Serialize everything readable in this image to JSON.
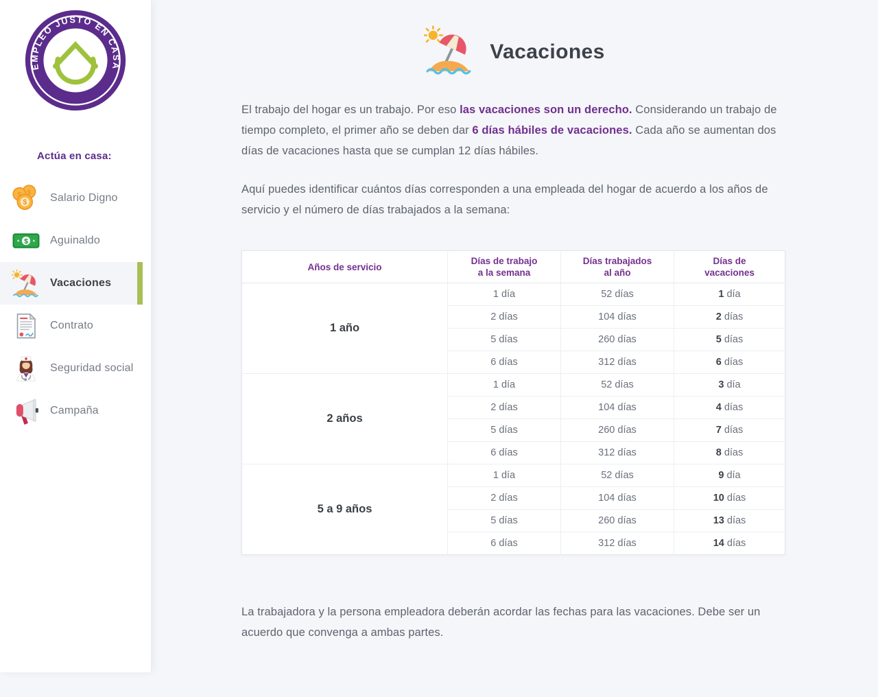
{
  "colors": {
    "page-bg": "#f5f6f9",
    "brand-purple": "#5b2c8c",
    "link-purple": "#70308f",
    "header-purple": "#73318f",
    "accent-green": "#a9bf55"
  },
  "sidebar": {
    "logo_text": "EMPLEO JUSTO EN CASA",
    "heading": "Actúa en casa:",
    "items": [
      {
        "label": "Salario Digno",
        "icon": "coins-icon",
        "active": false
      },
      {
        "label": "Aguinaldo",
        "icon": "banknote-icon",
        "active": false
      },
      {
        "label": "Vacaciones",
        "icon": "beach-umbrella-icon",
        "active": true
      },
      {
        "label": "Contrato",
        "icon": "contract-icon",
        "active": false
      },
      {
        "label": "Seguridad social",
        "icon": "nurse-icon",
        "active": false
      },
      {
        "label": "Campaña",
        "icon": "megaphone-icon",
        "active": false
      }
    ]
  },
  "main": {
    "title": "Vacaciones",
    "paragraph1": {
      "segments": [
        {
          "text": "El trabajo del hogar es un trabajo. Por eso ",
          "style": "normal"
        },
        {
          "text": "las vacaciones son un derecho.",
          "style": "bold-purple"
        },
        {
          "text": " Considerando un trabajo de tiempo completo, el primer año se deben dar ",
          "style": "normal"
        },
        {
          "text": "6 días hábiles de vacaciones.",
          "style": "bold-purple"
        },
        {
          "text": " Cada año se aumentan dos días de vacaciones hasta que se cumplan 12 días hábiles.",
          "style": "normal"
        }
      ]
    },
    "paragraph2": "Aquí puedes identificar cuántos días corresponden a una empleada del hogar de acuerdo a los años de servicio y el número de días trabajados a la semana:",
    "paragraph3": "La trabajadora y la persona empleadora deberán acordar las fechas para las vacaciones. Debe ser un acuerdo que convenga a ambas partes."
  },
  "table": {
    "headers": [
      {
        "lines": [
          "Años de servicio",
          ""
        ]
      },
      {
        "lines": [
          "Días de trabajo",
          "a la semana"
        ]
      },
      {
        "lines": [
          "Días trabajados",
          "al año"
        ]
      },
      {
        "lines": [
          "Días de",
          "vacaciones"
        ]
      }
    ],
    "groups": [
      {
        "service": "1 año",
        "rows": [
          {
            "week": "1 día",
            "year": "52 días",
            "vac_num": "1",
            "vac_unit": "día"
          },
          {
            "week": "2 días",
            "year": "104 días",
            "vac_num": "2",
            "vac_unit": "días"
          },
          {
            "week": "5 días",
            "year": "260 días",
            "vac_num": "5",
            "vac_unit": "días"
          },
          {
            "week": "6 días",
            "year": "312 días",
            "vac_num": "6",
            "vac_unit": "días"
          }
        ]
      },
      {
        "service": "2 años",
        "rows": [
          {
            "week": "1 día",
            "year": "52 días",
            "vac_num": "3",
            "vac_unit": "día"
          },
          {
            "week": "2 días",
            "year": "104 días",
            "vac_num": "4",
            "vac_unit": "días"
          },
          {
            "week": "5 días",
            "year": "260 días",
            "vac_num": "7",
            "vac_unit": "días"
          },
          {
            "week": "6 días",
            "year": "312 días",
            "vac_num": "8",
            "vac_unit": "días"
          }
        ]
      },
      {
        "service": "5 a 9 años",
        "rows": [
          {
            "week": "1 día",
            "year": "52 días",
            "vac_num": "9",
            "vac_unit": "día"
          },
          {
            "week": "2 días",
            "year": "104 días",
            "vac_num": "10",
            "vac_unit": "días"
          },
          {
            "week": "5 días",
            "year": "260 días",
            "vac_num": "13",
            "vac_unit": "días"
          },
          {
            "week": "6 días",
            "year": "312 días",
            "vac_num": "14",
            "vac_unit": "días"
          }
        ]
      }
    ]
  }
}
